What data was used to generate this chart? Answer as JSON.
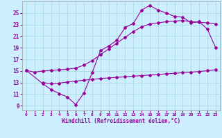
{
  "xlabel": "Windchill (Refroidissement éolien,°C)",
  "bg_color": "#cceeff",
  "grid_color": "#aadddd",
  "line_color": "#990099",
  "spine_color": "#999999",
  "x_ticks": [
    0,
    1,
    2,
    3,
    4,
    5,
    6,
    7,
    8,
    9,
    10,
    11,
    12,
    13,
    14,
    15,
    16,
    17,
    18,
    19,
    20,
    21,
    22,
    23
  ],
  "y_ticks": [
    9,
    11,
    13,
    15,
    17,
    19,
    21,
    23,
    25
  ],
  "ylim": [
    8.2,
    27.0
  ],
  "xlim": [
    -0.5,
    23.5
  ],
  "curve1_x": [
    0,
    1,
    2,
    3,
    4,
    5,
    6,
    7,
    8,
    9,
    10,
    11,
    12,
    13,
    14,
    15,
    16,
    17,
    18,
    19,
    20,
    21,
    22,
    23
  ],
  "curve1_y": [
    15.1,
    14.8,
    15.0,
    15.1,
    15.2,
    15.3,
    15.5,
    16.0,
    16.8,
    17.8,
    18.8,
    19.8,
    20.8,
    21.8,
    22.6,
    23.1,
    23.3,
    23.5,
    23.6,
    23.7,
    23.5,
    23.4,
    23.3,
    23.1
  ],
  "curve2_x": [
    0,
    2,
    3,
    4,
    5,
    6,
    7,
    8,
    9,
    10,
    11,
    12,
    13,
    14,
    15,
    16,
    17,
    18,
    19,
    20,
    21,
    22,
    23
  ],
  "curve2_y": [
    15.1,
    12.8,
    11.8,
    11.1,
    10.5,
    9.2,
    11.2,
    14.7,
    18.5,
    19.3,
    20.3,
    22.5,
    23.2,
    25.5,
    26.3,
    25.5,
    25.0,
    24.4,
    24.3,
    23.3,
    23.5,
    22.2,
    19.0
  ],
  "curve3_x": [
    2,
    3,
    4,
    5,
    6,
    7,
    8,
    9,
    10,
    11,
    12,
    13,
    14,
    15,
    16,
    17,
    18,
    19,
    20,
    21,
    22,
    23
  ],
  "curve3_y": [
    13.0,
    12.8,
    12.9,
    13.1,
    13.25,
    13.4,
    13.55,
    13.7,
    13.8,
    13.9,
    14.0,
    14.1,
    14.2,
    14.3,
    14.4,
    14.5,
    14.6,
    14.7,
    14.8,
    14.9,
    15.05,
    15.2
  ]
}
